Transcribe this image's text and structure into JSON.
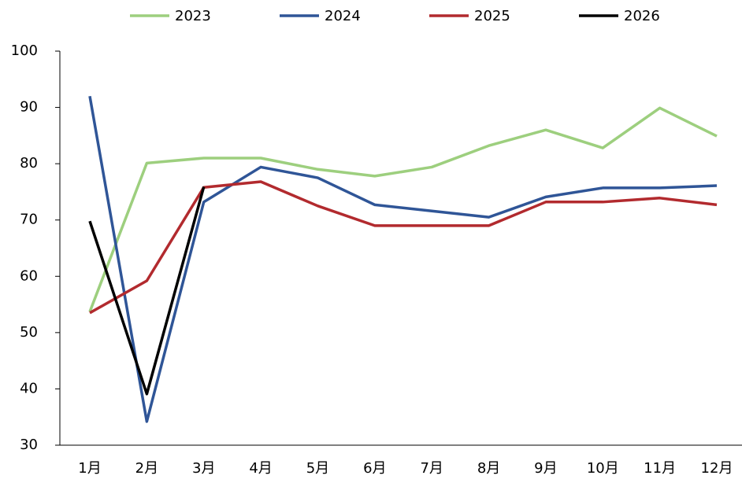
{
  "chart_data": {
    "type": "line",
    "categories": [
      "1月",
      "2月",
      "3月",
      "4月",
      "5月",
      "6月",
      "7月",
      "8月",
      "9月",
      "10月",
      "11月",
      "12月"
    ],
    "series": [
      {
        "name": "2023",
        "color": "#9dcf7e",
        "values": [
          53.7,
          80.1,
          81.0,
          81.0,
          79.0,
          77.8,
          79.4,
          83.2,
          86.0,
          82.8,
          89.9,
          84.9
        ]
      },
      {
        "name": "2024",
        "color": "#2f5597",
        "values": [
          92.0,
          34.2,
          73.2,
          79.4,
          77.5,
          72.7,
          71.6,
          70.5,
          74.1,
          75.7,
          75.7,
          76.1
        ]
      },
      {
        "name": "2025",
        "color": "#b22a2e",
        "values": [
          53.5,
          59.2,
          75.8,
          76.8,
          72.5,
          69.0,
          69.0,
          69.0,
          73.2,
          73.2,
          73.9,
          72.7
        ]
      },
      {
        "name": "2026",
        "color": "#000000",
        "values": [
          69.8,
          39.1,
          75.9,
          null,
          null,
          null,
          null,
          null,
          null,
          null,
          null,
          null
        ]
      }
    ],
    "ylim": [
      30,
      100
    ],
    "yticks": [
      30,
      40,
      50,
      60,
      70,
      80,
      90,
      100
    ],
    "legend": "top"
  }
}
